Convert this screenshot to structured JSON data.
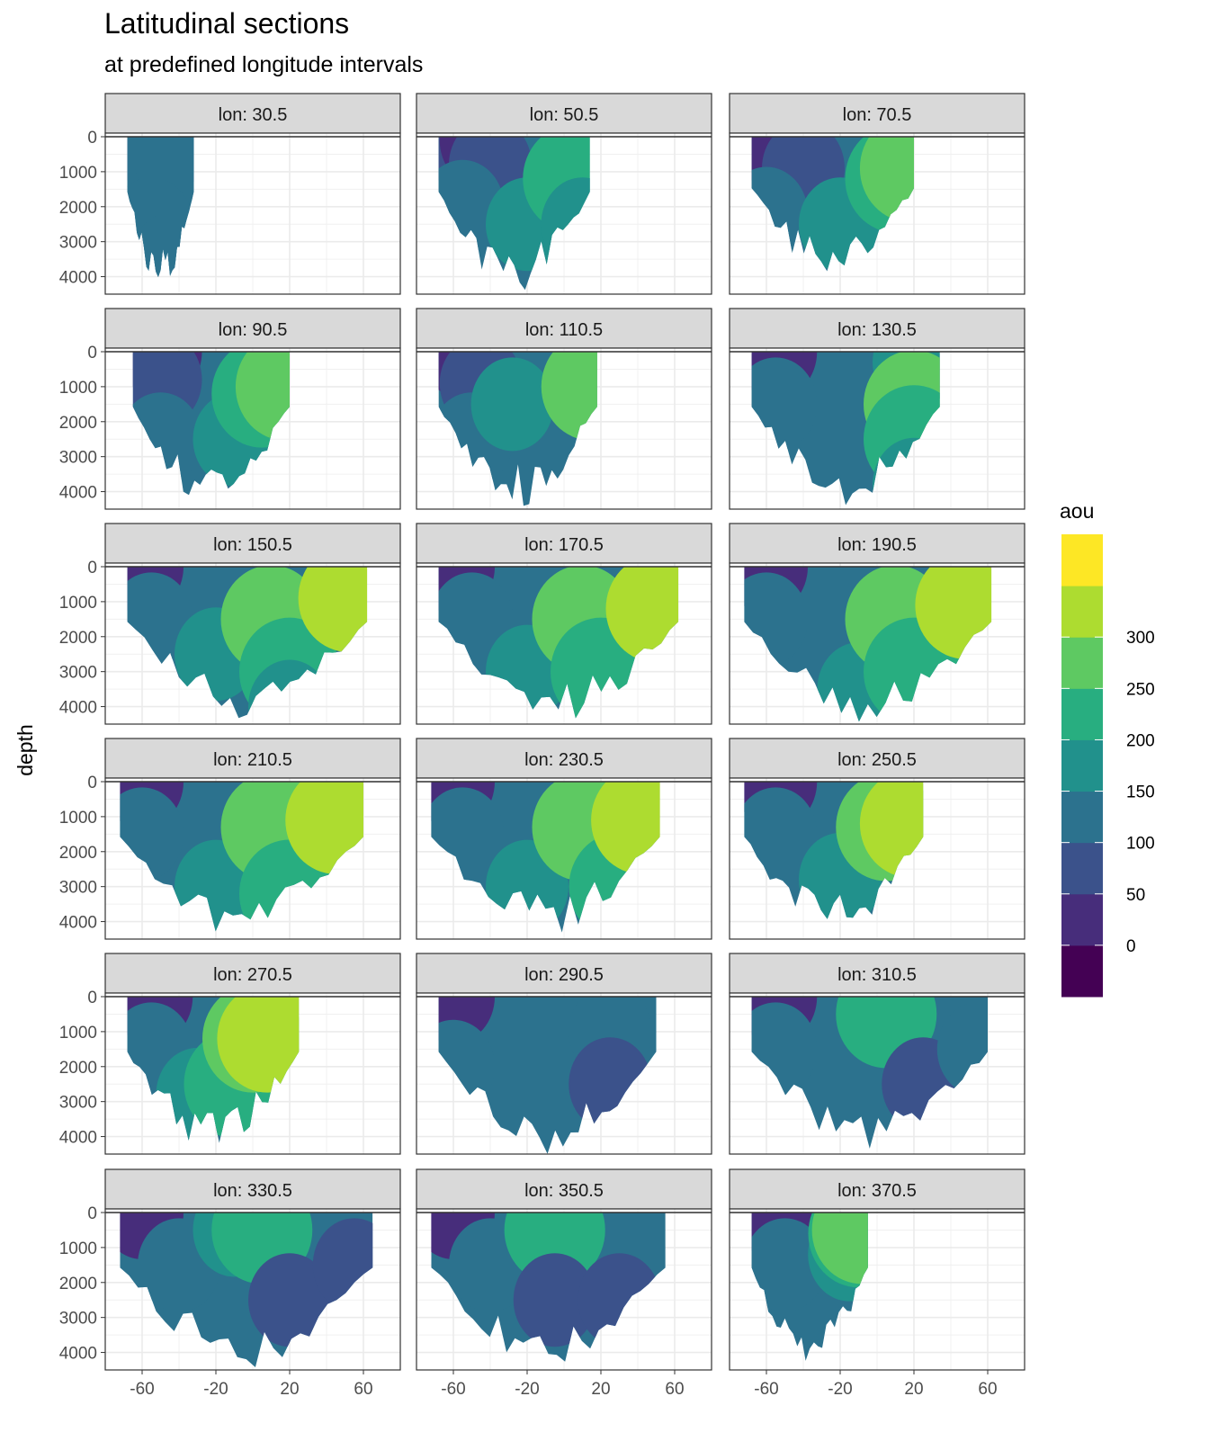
{
  "chart_data": {
    "type": "heatmap",
    "title": "Latitudinal sections",
    "subtitle": "at predefined longitude intervals",
    "xlabel": "",
    "ylabel": "depth",
    "y_reversed": true,
    "xlim": [
      -80,
      80
    ],
    "ylim": [
      0,
      4500
    ],
    "x_ticks": [
      -60,
      -20,
      20,
      60
    ],
    "x_tick_labels": [
      "-60",
      "-20",
      "20",
      "60"
    ],
    "y_ticks": [
      0,
      1000,
      2000,
      3000,
      4000
    ],
    "y_tick_labels": [
      "0",
      "1000",
      "2000",
      "3000",
      "4000"
    ],
    "grid": true,
    "facet_prefix": "lon: ",
    "legend": {
      "title": "aou",
      "position": "right",
      "breaks": [
        "0",
        "50",
        "100",
        "150",
        "200",
        "250",
        "300"
      ],
      "colors": [
        "#440154",
        "#472d7b",
        "#3b528b",
        "#2c728e",
        "#21918c",
        "#28ae80",
        "#5ec962",
        "#addc30",
        "#fde725"
      ]
    },
    "facets": [
      {
        "lon": "30.5",
        "lat_range": [
          -68,
          -32
        ],
        "max_depth": 4500,
        "zones": [
          {
            "lat": -60,
            "depth": 0,
            "level": 2
          },
          {
            "lat": -38,
            "depth": 0,
            "level": 2
          },
          {
            "lat": -52,
            "depth": 500,
            "level": 3
          },
          {
            "lat": -42,
            "depth": 600,
            "level": 3
          },
          {
            "lat": -55,
            "depth": 2500,
            "level": 3
          },
          {
            "lat": -44,
            "depth": 3500,
            "level": 3
          }
        ]
      },
      {
        "lon": "50.5",
        "lat_range": [
          -68,
          14
        ],
        "max_depth": 4500,
        "zones": [
          {
            "lat": -60,
            "depth": 0,
            "level": 2
          },
          {
            "lat": -45,
            "depth": 100,
            "level": 1
          },
          {
            "lat": -40,
            "depth": 800,
            "level": 2
          },
          {
            "lat": -55,
            "depth": 2000,
            "level": 3
          },
          {
            "lat": -20,
            "depth": 2500,
            "level": 4
          },
          {
            "lat": 5,
            "depth": 1200,
            "level": 5
          },
          {
            "lat": 10,
            "depth": 2500,
            "level": 4
          }
        ]
      },
      {
        "lon": "70.5",
        "lat_range": [
          -68,
          20
        ],
        "max_depth": 4200,
        "zones": [
          {
            "lat": -60,
            "depth": 0,
            "level": 1
          },
          {
            "lat": -40,
            "depth": 900,
            "level": 2
          },
          {
            "lat": -60,
            "depth": 2200,
            "level": 3
          },
          {
            "lat": -20,
            "depth": 2500,
            "level": 4
          },
          {
            "lat": 10,
            "depth": 1200,
            "level": 5
          },
          {
            "lat": 18,
            "depth": 900,
            "level": 6
          }
        ]
      },
      {
        "lon": "90.5",
        "lat_range": [
          -65,
          20
        ],
        "max_depth": 4500,
        "zones": [
          {
            "lat": -50,
            "depth": 0,
            "level": 1
          },
          {
            "lat": -50,
            "depth": 800,
            "level": 2
          },
          {
            "lat": -50,
            "depth": 2500,
            "level": 3
          },
          {
            "lat": -10,
            "depth": 2500,
            "level": 4
          },
          {
            "lat": 5,
            "depth": 1200,
            "level": 5
          },
          {
            "lat": 18,
            "depth": 1000,
            "level": 6
          }
        ]
      },
      {
        "lon": "110.5",
        "lat_range": [
          -68,
          18
        ],
        "max_depth": 4500,
        "zones": [
          {
            "lat": -55,
            "depth": 0,
            "level": 1
          },
          {
            "lat": -45,
            "depth": 900,
            "level": 2
          },
          {
            "lat": -50,
            "depth": 2500,
            "level": 3
          },
          {
            "lat": -28,
            "depth": 1500,
            "level": 4
          },
          {
            "lat": 15,
            "depth": 1000,
            "level": 6
          }
        ]
      },
      {
        "lon": "130.5",
        "lat_range": [
          -68,
          34
        ],
        "max_depth": 4500,
        "zones": [
          {
            "lat": -55,
            "depth": 0,
            "level": 1
          },
          {
            "lat": -55,
            "depth": 1500,
            "level": 3
          },
          {
            "lat": 20,
            "depth": 300,
            "level": 4
          },
          {
            "lat": 20,
            "depth": 1500,
            "level": 6
          },
          {
            "lat": 20,
            "depth": 2500,
            "level": 5
          },
          {
            "lat": 20,
            "depth": 3800,
            "level": 4
          }
        ]
      },
      {
        "lon": "150.5",
        "lat_range": [
          -68,
          62
        ],
        "max_depth": 4500,
        "zones": [
          {
            "lat": -60,
            "depth": 0,
            "level": 1
          },
          {
            "lat": -55,
            "depth": 1500,
            "level": 3
          },
          {
            "lat": -20,
            "depth": 2500,
            "level": 4
          },
          {
            "lat": 10,
            "depth": 1500,
            "level": 6
          },
          {
            "lat": 20,
            "depth": 3000,
            "level": 5
          },
          {
            "lat": 20,
            "depth": 4000,
            "level": 4
          },
          {
            "lat": 52,
            "depth": 900,
            "level": 7
          }
        ]
      },
      {
        "lon": "170.5",
        "lat_range": [
          -68,
          62
        ],
        "max_depth": 4500,
        "zones": [
          {
            "lat": -60,
            "depth": 0,
            "level": 1
          },
          {
            "lat": -50,
            "depth": 1500,
            "level": 3
          },
          {
            "lat": -20,
            "depth": 3000,
            "level": 4
          },
          {
            "lat": 10,
            "depth": 1500,
            "level": 6
          },
          {
            "lat": 20,
            "depth": 3000,
            "level": 5
          },
          {
            "lat": 50,
            "depth": 1200,
            "level": 7
          }
        ]
      },
      {
        "lon": "190.5",
        "lat_range": [
          -72,
          62
        ],
        "max_depth": 4500,
        "zones": [
          {
            "lat": -60,
            "depth": 0,
            "level": 1
          },
          {
            "lat": -60,
            "depth": 1500,
            "level": 3
          },
          {
            "lat": -10,
            "depth": 3500,
            "level": 4
          },
          {
            "lat": 10,
            "depth": 1500,
            "level": 6
          },
          {
            "lat": 20,
            "depth": 3000,
            "level": 5
          },
          {
            "lat": 48,
            "depth": 1100,
            "level": 7
          }
        ]
      },
      {
        "lon": "210.5",
        "lat_range": [
          -72,
          60
        ],
        "max_depth": 4500,
        "zones": [
          {
            "lat": -60,
            "depth": 0,
            "level": 1
          },
          {
            "lat": -60,
            "depth": 1500,
            "level": 3
          },
          {
            "lat": -20,
            "depth": 3000,
            "level": 4
          },
          {
            "lat": 10,
            "depth": 1300,
            "level": 6
          },
          {
            "lat": 20,
            "depth": 3200,
            "level": 5
          },
          {
            "lat": 45,
            "depth": 1100,
            "level": 7
          }
        ]
      },
      {
        "lon": "230.5",
        "lat_range": [
          -72,
          52
        ],
        "max_depth": 4500,
        "zones": [
          {
            "lat": -60,
            "depth": 0,
            "level": 1
          },
          {
            "lat": -55,
            "depth": 1500,
            "level": 3
          },
          {
            "lat": -20,
            "depth": 3000,
            "level": 4
          },
          {
            "lat": 10,
            "depth": 1300,
            "level": 6
          },
          {
            "lat": 30,
            "depth": 3000,
            "level": 5
          },
          {
            "lat": 42,
            "depth": 1100,
            "level": 7
          }
        ]
      },
      {
        "lon": "250.5",
        "lat_range": [
          -72,
          25
        ],
        "max_depth": 4500,
        "zones": [
          {
            "lat": -55,
            "depth": 0,
            "level": 1
          },
          {
            "lat": -55,
            "depth": 1500,
            "level": 3
          },
          {
            "lat": -20,
            "depth": 2800,
            "level": 4
          },
          {
            "lat": 5,
            "depth": 1300,
            "level": 6
          },
          {
            "lat": 18,
            "depth": 1200,
            "level": 7
          }
        ]
      },
      {
        "lon": "270.5",
        "lat_range": [
          -68,
          25
        ],
        "max_depth": 4500,
        "zones": [
          {
            "lat": -55,
            "depth": 0,
            "level": 1
          },
          {
            "lat": -55,
            "depth": 1500,
            "level": 3
          },
          {
            "lat": -30,
            "depth": 2800,
            "level": 4
          },
          {
            "lat": -10,
            "depth": 2500,
            "level": 5
          },
          {
            "lat": 0,
            "depth": 1200,
            "level": 6
          },
          {
            "lat": 8,
            "depth": 1200,
            "level": 7
          }
        ]
      },
      {
        "lon": "290.5",
        "lat_range": [
          -68,
          50
        ],
        "max_depth": 4500,
        "zones": [
          {
            "lat": -60,
            "depth": 0,
            "level": 1
          },
          {
            "lat": -60,
            "depth": 2000,
            "level": 3
          },
          {
            "lat": 25,
            "depth": 1000,
            "level": 3
          },
          {
            "lat": 25,
            "depth": 2500,
            "level": 2
          }
        ]
      },
      {
        "lon": "310.5",
        "lat_range": [
          -68,
          60
        ],
        "max_depth": 4500,
        "zones": [
          {
            "lat": -55,
            "depth": 0,
            "level": 1
          },
          {
            "lat": -55,
            "depth": 1500,
            "level": 3
          },
          {
            "lat": 20,
            "depth": 300,
            "level": 3
          },
          {
            "lat": 5,
            "depth": 500,
            "level": 5
          },
          {
            "lat": 25,
            "depth": 2500,
            "level": 2
          },
          {
            "lat": 55,
            "depth": 1500,
            "level": 3
          }
        ]
      },
      {
        "lon": "330.5",
        "lat_range": [
          -72,
          65
        ],
        "max_depth": 4500,
        "zones": [
          {
            "lat": -60,
            "depth": 0,
            "level": 1
          },
          {
            "lat": -40,
            "depth": 1500,
            "level": 3
          },
          {
            "lat": -10,
            "depth": 500,
            "level": 4
          },
          {
            "lat": 5,
            "depth": 500,
            "level": 5
          },
          {
            "lat": 20,
            "depth": 2500,
            "level": 2
          },
          {
            "lat": 55,
            "depth": 1500,
            "level": 2
          }
        ]
      },
      {
        "lon": "350.5",
        "lat_range": [
          -72,
          55
        ],
        "max_depth": 4500,
        "zones": [
          {
            "lat": -60,
            "depth": 0,
            "level": 1
          },
          {
            "lat": -40,
            "depth": 1500,
            "level": 3
          },
          {
            "lat": -10,
            "depth": 500,
            "level": 4
          },
          {
            "lat": -5,
            "depth": 500,
            "level": 5
          },
          {
            "lat": -5,
            "depth": 2500,
            "level": 2
          },
          {
            "lat": 30,
            "depth": 2500,
            "level": 2
          }
        ]
      },
      {
        "lon": "370.5",
        "lat_range": [
          -68,
          -5
        ],
        "max_depth": 4500,
        "zones": [
          {
            "lat": -55,
            "depth": 0,
            "level": 1
          },
          {
            "lat": -50,
            "depth": 1500,
            "level": 3
          },
          {
            "lat": -15,
            "depth": 1200,
            "level": 4
          },
          {
            "lat": -10,
            "depth": 600,
            "level": 5
          },
          {
            "lat": -8,
            "depth": 500,
            "level": 6
          }
        ]
      }
    ]
  }
}
